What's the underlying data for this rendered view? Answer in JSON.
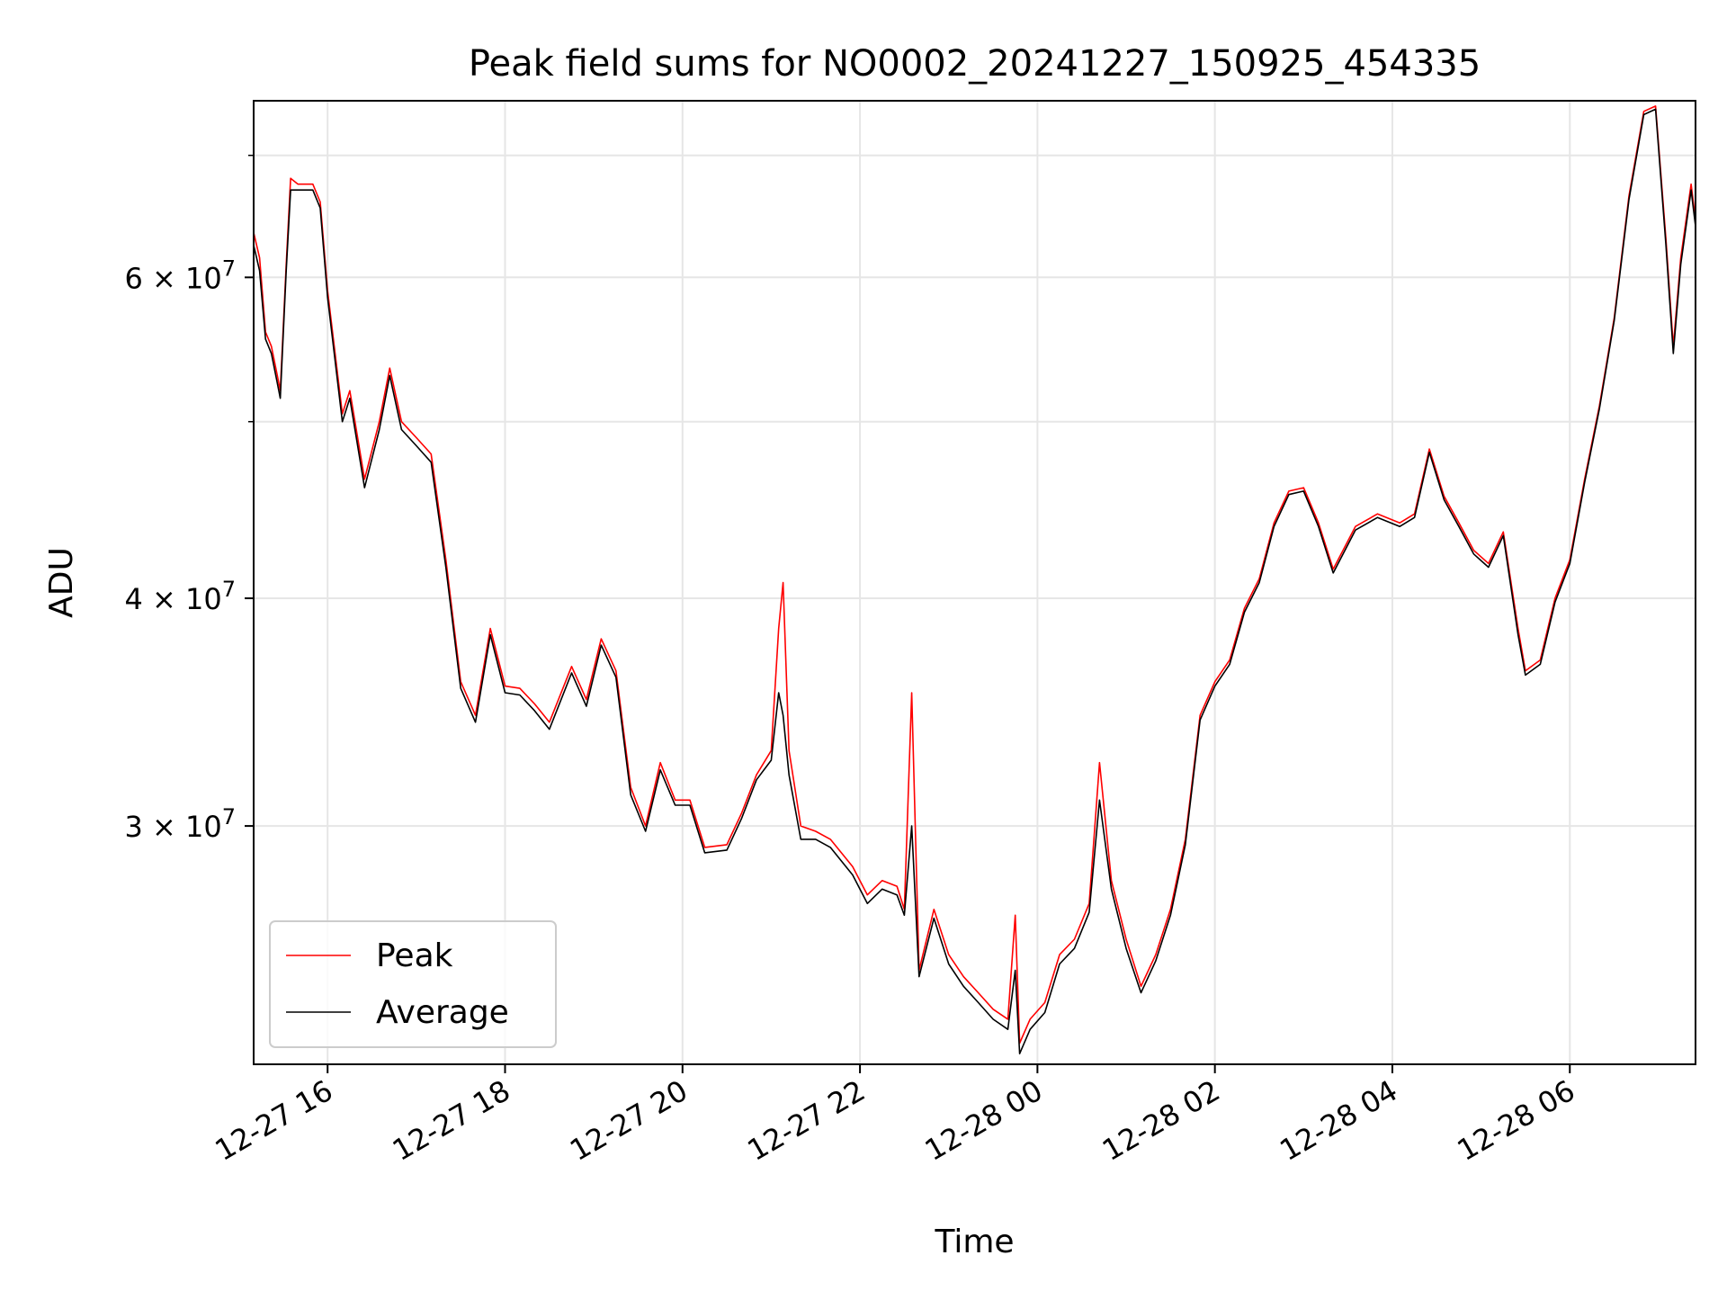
{
  "chart_data": {
    "type": "line",
    "title": "Peak field sums for NO0002_20241227_150925_454335",
    "xlabel": "Time",
    "ylabel": "ADU",
    "yscale": "log",
    "grid": true,
    "legend_position": "lower-left",
    "xlim": [
      "2024-12-27 15:10",
      "2024-12-28 07:25"
    ],
    "ylim": [
      22200000,
      75000000
    ],
    "x_ticks": [
      {
        "value": "2024-12-27 16:00",
        "label": "12-27 16"
      },
      {
        "value": "2024-12-27 18:00",
        "label": "12-27 18"
      },
      {
        "value": "2024-12-27 20:00",
        "label": "12-27 20"
      },
      {
        "value": "2024-12-27 22:00",
        "label": "12-27 22"
      },
      {
        "value": "2024-12-28 00:00",
        "label": "12-28 00"
      },
      {
        "value": "2024-12-28 02:00",
        "label": "12-28 02"
      },
      {
        "value": "2024-12-28 04:00",
        "label": "12-28 04"
      },
      {
        "value": "2024-12-28 06:00",
        "label": "12-28 06"
      }
    ],
    "y_ticks": [
      {
        "value": 30000000,
        "mantissa": "3",
        "base": "10",
        "exp": "7"
      },
      {
        "value": 40000000,
        "mantissa": "4",
        "base": "10",
        "exp": "7"
      },
      {
        "value": 60000000,
        "mantissa": "6",
        "base": "10",
        "exp": "7"
      }
    ],
    "y_minor_ticks": [
      50000000,
      70000000
    ],
    "series": [
      {
        "name": "Peak",
        "color": "#ff0000",
        "points": [
          [
            "2024-12-27 15:10",
            63500000
          ],
          [
            "2024-12-27 15:14",
            61500000
          ],
          [
            "2024-12-27 15:18",
            56000000
          ],
          [
            "2024-12-27 15:22",
            55000000
          ],
          [
            "2024-12-27 15:26",
            53000000
          ],
          [
            "2024-12-27 15:28",
            52000000
          ],
          [
            "2024-12-27 15:32",
            61000000
          ],
          [
            "2024-12-27 15:35",
            68000000
          ],
          [
            "2024-12-27 15:40",
            67500000
          ],
          [
            "2024-12-27 15:50",
            67500000
          ],
          [
            "2024-12-27 15:55",
            66000000
          ],
          [
            "2024-12-27 16:00",
            59000000
          ],
          [
            "2024-12-27 16:10",
            50500000
          ],
          [
            "2024-12-27 16:15",
            52000000
          ],
          [
            "2024-12-27 16:25",
            46500000
          ],
          [
            "2024-12-27 16:35",
            50000000
          ],
          [
            "2024-12-27 16:42",
            53500000
          ],
          [
            "2024-12-27 16:50",
            50000000
          ],
          [
            "2024-12-27 17:00",
            49000000
          ],
          [
            "2024-12-27 17:10",
            48000000
          ],
          [
            "2024-12-27 17:20",
            42000000
          ],
          [
            "2024-12-27 17:30",
            36000000
          ],
          [
            "2024-12-27 17:40",
            34500000
          ],
          [
            "2024-12-27 17:50",
            38500000
          ],
          [
            "2024-12-27 18:00",
            35800000
          ],
          [
            "2024-12-27 18:10",
            35700000
          ],
          [
            "2024-12-27 18:20",
            35000000
          ],
          [
            "2024-12-27 18:30",
            34200000
          ],
          [
            "2024-12-27 18:45",
            36700000
          ],
          [
            "2024-12-27 18:55",
            35200000
          ],
          [
            "2024-12-27 19:05",
            38000000
          ],
          [
            "2024-12-27 19:15",
            36500000
          ],
          [
            "2024-12-27 19:25",
            31500000
          ],
          [
            "2024-12-27 19:35",
            30000000
          ],
          [
            "2024-12-27 19:45",
            32500000
          ],
          [
            "2024-12-27 19:55",
            31000000
          ],
          [
            "2024-12-27 20:05",
            31000000
          ],
          [
            "2024-12-27 20:15",
            29200000
          ],
          [
            "2024-12-27 20:30",
            29300000
          ],
          [
            "2024-12-27 20:40",
            30500000
          ],
          [
            "2024-12-27 20:50",
            32000000
          ],
          [
            "2024-12-27 21:00",
            33000000
          ],
          [
            "2024-12-27 21:05",
            38500000
          ],
          [
            "2024-12-27 21:08",
            40800000
          ],
          [
            "2024-12-27 21:12",
            33000000
          ],
          [
            "2024-12-27 21:20",
            30000000
          ],
          [
            "2024-12-27 21:30",
            29800000
          ],
          [
            "2024-12-27 21:40",
            29500000
          ],
          [
            "2024-12-27 21:55",
            28500000
          ],
          [
            "2024-12-27 22:05",
            27500000
          ],
          [
            "2024-12-27 22:15",
            28000000
          ],
          [
            "2024-12-27 22:25",
            27800000
          ],
          [
            "2024-12-27 22:30",
            27000000
          ],
          [
            "2024-12-27 22:35",
            35500000
          ],
          [
            "2024-12-27 22:40",
            25000000
          ],
          [
            "2024-12-27 22:50",
            27000000
          ],
          [
            "2024-12-27 23:00",
            25500000
          ],
          [
            "2024-12-27 23:10",
            24800000
          ],
          [
            "2024-12-27 23:20",
            24300000
          ],
          [
            "2024-12-27 23:30",
            23800000
          ],
          [
            "2024-12-27 23:40",
            23500000
          ],
          [
            "2024-12-27 23:45",
            26800000
          ],
          [
            "2024-12-27 23:48",
            22800000
          ],
          [
            "2024-12-27 23:55",
            23500000
          ],
          [
            "2024-12-28 00:05",
            24000000
          ],
          [
            "2024-12-28 00:15",
            25500000
          ],
          [
            "2024-12-28 00:25",
            26000000
          ],
          [
            "2024-12-28 00:35",
            27200000
          ],
          [
            "2024-12-28 00:42",
            32500000
          ],
          [
            "2024-12-28 00:50",
            28000000
          ],
          [
            "2024-12-28 01:00",
            26000000
          ],
          [
            "2024-12-28 01:10",
            24500000
          ],
          [
            "2024-12-28 01:20",
            25500000
          ],
          [
            "2024-12-28 01:30",
            27000000
          ],
          [
            "2024-12-28 01:40",
            29500000
          ],
          [
            "2024-12-28 01:50",
            34500000
          ],
          [
            "2024-12-28 02:00",
            36000000
          ],
          [
            "2024-12-28 02:10",
            37000000
          ],
          [
            "2024-12-28 02:20",
            39500000
          ],
          [
            "2024-12-28 02:30",
            41000000
          ],
          [
            "2024-12-28 02:40",
            44000000
          ],
          [
            "2024-12-28 02:50",
            45800000
          ],
          [
            "2024-12-28 03:00",
            46000000
          ],
          [
            "2024-12-28 03:10",
            44000000
          ],
          [
            "2024-12-28 03:20",
            41500000
          ],
          [
            "2024-12-28 03:35",
            43800000
          ],
          [
            "2024-12-28 03:50",
            44500000
          ],
          [
            "2024-12-28 04:05",
            44000000
          ],
          [
            "2024-12-28 04:15",
            44500000
          ],
          [
            "2024-12-28 04:25",
            48300000
          ],
          [
            "2024-12-28 04:35",
            45500000
          ],
          [
            "2024-12-28 04:45",
            44000000
          ],
          [
            "2024-12-28 04:55",
            42500000
          ],
          [
            "2024-12-28 05:05",
            41800000
          ],
          [
            "2024-12-28 05:15",
            43500000
          ],
          [
            "2024-12-28 05:25",
            38500000
          ],
          [
            "2024-12-28 05:30",
            36500000
          ],
          [
            "2024-12-28 05:40",
            37000000
          ],
          [
            "2024-12-28 05:50",
            40000000
          ],
          [
            "2024-12-28 06:00",
            42000000
          ],
          [
            "2024-12-28 06:10",
            46500000
          ],
          [
            "2024-12-28 06:20",
            51000000
          ],
          [
            "2024-12-28 06:30",
            57000000
          ],
          [
            "2024-12-28 06:40",
            66500000
          ],
          [
            "2024-12-28 06:50",
            74000000
          ],
          [
            "2024-12-28 06:58",
            74500000
          ],
          [
            "2024-12-28 07:05",
            63000000
          ],
          [
            "2024-12-28 07:10",
            55000000
          ],
          [
            "2024-12-28 07:15",
            61500000
          ],
          [
            "2024-12-28 07:22",
            67500000
          ],
          [
            "2024-12-28 07:25",
            64500000
          ]
        ]
      },
      {
        "name": "Average",
        "color": "#000000",
        "points": [
          [
            "2024-12-27 15:10",
            62500000
          ],
          [
            "2024-12-27 15:14",
            60500000
          ],
          [
            "2024-12-27 15:18",
            55500000
          ],
          [
            "2024-12-27 15:22",
            54500000
          ],
          [
            "2024-12-27 15:26",
            52500000
          ],
          [
            "2024-12-27 15:28",
            51500000
          ],
          [
            "2024-12-27 15:32",
            60500000
          ],
          [
            "2024-12-27 15:35",
            67000000
          ],
          [
            "2024-12-27 15:40",
            67000000
          ],
          [
            "2024-12-27 15:50",
            67000000
          ],
          [
            "2024-12-27 15:55",
            65500000
          ],
          [
            "2024-12-27 16:00",
            58500000
          ],
          [
            "2024-12-27 16:10",
            50000000
          ],
          [
            "2024-12-27 16:15",
            51500000
          ],
          [
            "2024-12-27 16:25",
            46000000
          ],
          [
            "2024-12-27 16:35",
            49500000
          ],
          [
            "2024-12-27 16:42",
            53000000
          ],
          [
            "2024-12-27 16:50",
            49500000
          ],
          [
            "2024-12-27 17:00",
            48500000
          ],
          [
            "2024-12-27 17:10",
            47500000
          ],
          [
            "2024-12-27 17:20",
            41600000
          ],
          [
            "2024-12-27 17:30",
            35700000
          ],
          [
            "2024-12-27 17:40",
            34200000
          ],
          [
            "2024-12-27 17:50",
            38200000
          ],
          [
            "2024-12-27 18:00",
            35500000
          ],
          [
            "2024-12-27 18:10",
            35400000
          ],
          [
            "2024-12-27 18:20",
            34700000
          ],
          [
            "2024-12-27 18:30",
            33900000
          ],
          [
            "2024-12-27 18:45",
            36400000
          ],
          [
            "2024-12-27 18:55",
            34900000
          ],
          [
            "2024-12-27 19:05",
            37700000
          ],
          [
            "2024-12-27 19:15",
            36200000
          ],
          [
            "2024-12-27 19:25",
            31200000
          ],
          [
            "2024-12-27 19:35",
            29800000
          ],
          [
            "2024-12-27 19:45",
            32200000
          ],
          [
            "2024-12-27 19:55",
            30800000
          ],
          [
            "2024-12-27 20:05",
            30800000
          ],
          [
            "2024-12-27 20:15",
            29000000
          ],
          [
            "2024-12-27 20:30",
            29100000
          ],
          [
            "2024-12-27 20:40",
            30300000
          ],
          [
            "2024-12-27 20:50",
            31800000
          ],
          [
            "2024-12-27 21:00",
            32600000
          ],
          [
            "2024-12-27 21:05",
            35500000
          ],
          [
            "2024-12-27 21:08",
            34500000
          ],
          [
            "2024-12-27 21:12",
            32000000
          ],
          [
            "2024-12-27 21:20",
            29500000
          ],
          [
            "2024-12-27 21:30",
            29500000
          ],
          [
            "2024-12-27 21:40",
            29200000
          ],
          [
            "2024-12-27 21:55",
            28200000
          ],
          [
            "2024-12-27 22:05",
            27200000
          ],
          [
            "2024-12-27 22:15",
            27700000
          ],
          [
            "2024-12-27 22:25",
            27500000
          ],
          [
            "2024-12-27 22:30",
            26800000
          ],
          [
            "2024-12-27 22:35",
            30000000
          ],
          [
            "2024-12-27 22:40",
            24800000
          ],
          [
            "2024-12-27 22:50",
            26700000
          ],
          [
            "2024-12-27 23:00",
            25200000
          ],
          [
            "2024-12-27 23:10",
            24500000
          ],
          [
            "2024-12-27 23:20",
            24000000
          ],
          [
            "2024-12-27 23:30",
            23500000
          ],
          [
            "2024-12-27 23:40",
            23200000
          ],
          [
            "2024-12-27 23:45",
            25000000
          ],
          [
            "2024-12-27 23:48",
            22500000
          ],
          [
            "2024-12-27 23:55",
            23200000
          ],
          [
            "2024-12-28 00:05",
            23700000
          ],
          [
            "2024-12-28 00:15",
            25200000
          ],
          [
            "2024-12-28 00:25",
            25700000
          ],
          [
            "2024-12-28 00:35",
            26900000
          ],
          [
            "2024-12-28 00:42",
            31000000
          ],
          [
            "2024-12-28 00:50",
            27700000
          ],
          [
            "2024-12-28 01:00",
            25700000
          ],
          [
            "2024-12-28 01:10",
            24300000
          ],
          [
            "2024-12-28 01:20",
            25300000
          ],
          [
            "2024-12-28 01:30",
            26800000
          ],
          [
            "2024-12-28 01:40",
            29300000
          ],
          [
            "2024-12-28 01:50",
            34300000
          ],
          [
            "2024-12-28 02:00",
            35800000
          ],
          [
            "2024-12-28 02:10",
            36800000
          ],
          [
            "2024-12-28 02:20",
            39300000
          ],
          [
            "2024-12-28 02:30",
            40800000
          ],
          [
            "2024-12-28 02:40",
            43800000
          ],
          [
            "2024-12-28 02:50",
            45600000
          ],
          [
            "2024-12-28 03:00",
            45800000
          ],
          [
            "2024-12-28 03:10",
            43800000
          ],
          [
            "2024-12-28 03:20",
            41300000
          ],
          [
            "2024-12-28 03:35",
            43600000
          ],
          [
            "2024-12-28 03:50",
            44300000
          ],
          [
            "2024-12-28 04:05",
            43800000
          ],
          [
            "2024-12-28 04:15",
            44300000
          ],
          [
            "2024-12-28 04:25",
            48100000
          ],
          [
            "2024-12-28 04:35",
            45300000
          ],
          [
            "2024-12-28 04:45",
            43800000
          ],
          [
            "2024-12-28 04:55",
            42300000
          ],
          [
            "2024-12-28 05:05",
            41600000
          ],
          [
            "2024-12-28 05:15",
            43300000
          ],
          [
            "2024-12-28 05:25",
            38200000
          ],
          [
            "2024-12-28 05:30",
            36300000
          ],
          [
            "2024-12-28 05:40",
            36800000
          ],
          [
            "2024-12-28 05:50",
            39800000
          ],
          [
            "2024-12-28 06:00",
            41800000
          ],
          [
            "2024-12-28 06:10",
            46300000
          ],
          [
            "2024-12-28 06:20",
            50800000
          ],
          [
            "2024-12-28 06:30",
            56800000
          ],
          [
            "2024-12-28 06:40",
            66200000
          ],
          [
            "2024-12-28 06:50",
            73700000
          ],
          [
            "2024-12-28 06:58",
            74200000
          ],
          [
            "2024-12-28 07:05",
            62500000
          ],
          [
            "2024-12-28 07:10",
            54500000
          ],
          [
            "2024-12-28 07:15",
            61000000
          ],
          [
            "2024-12-28 07:22",
            67000000
          ],
          [
            "2024-12-28 07:25",
            64000000
          ]
        ]
      }
    ]
  }
}
